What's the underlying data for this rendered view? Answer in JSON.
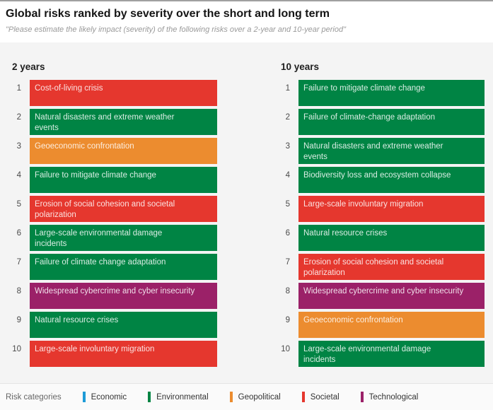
{
  "header": {
    "title": "Global risks ranked by severity over the short and long term",
    "subtitle": "\"Please estimate the likely impact (severity) of the following risks over a 2-year and 10-year period\""
  },
  "chart_data": {
    "type": "table",
    "title": "Global risks ranked by severity over the short and long term",
    "legend_position": "bottom",
    "categories": {
      "Economic": "#1d9bd7",
      "Environmental": "#008444",
      "Geopolitical": "#ec8c2f",
      "Societal": "#e5372e",
      "Technological": "#9b2168"
    },
    "columns": [
      {
        "label": "2 years",
        "items": [
          {
            "rank": "1",
            "risk": "Cost-of-living crisis",
            "category": "Societal"
          },
          {
            "rank": "2",
            "risk": "Natural disasters and extreme weather\nevents",
            "category": "Environmental"
          },
          {
            "rank": "3",
            "risk": "Geoeconomic confrontation",
            "category": "Geopolitical"
          },
          {
            "rank": "4",
            "risk": "Failure to mitigate climate change",
            "category": "Environmental"
          },
          {
            "rank": "5",
            "risk": "Erosion of social cohesion and societal\npolarization",
            "category": "Societal"
          },
          {
            "rank": "6",
            "risk": "Large-scale environmental damage\nincidents",
            "category": "Environmental"
          },
          {
            "rank": "7",
            "risk": "Failure of climate change adaptation",
            "category": "Environmental"
          },
          {
            "rank": "8",
            "risk": "Widespread cybercrime and cyber insecurity",
            "category": "Technological"
          },
          {
            "rank": "9",
            "risk": "Natural resource crises",
            "category": "Environmental"
          },
          {
            "rank": "10",
            "risk": "Large-scale involuntary migration",
            "category": "Societal"
          }
        ]
      },
      {
        "label": "10 years",
        "items": [
          {
            "rank": "1",
            "risk": "Failure to mitigate climate change",
            "category": "Environmental"
          },
          {
            "rank": "2",
            "risk": "Failure of climate-change adaptation",
            "category": "Environmental"
          },
          {
            "rank": "3",
            "risk": "Natural disasters and extreme weather\nevents",
            "category": "Environmental"
          },
          {
            "rank": "4",
            "risk": "Biodiversity loss and ecosystem collapse",
            "category": "Environmental"
          },
          {
            "rank": "5",
            "risk": "Large-scale involuntary migration",
            "category": "Societal"
          },
          {
            "rank": "6",
            "risk": "Natural resource crises",
            "category": "Environmental"
          },
          {
            "rank": "7",
            "risk": "Erosion of social cohesion and societal\npolarization",
            "category": "Societal"
          },
          {
            "rank": "8",
            "risk": "Widespread cybercrime and cyber insecurity",
            "category": "Technological"
          },
          {
            "rank": "9",
            "risk": "Geoeconomic confrontation",
            "category": "Geopolitical"
          },
          {
            "rank": "10",
            "risk": "Large-scale environmental damage\nincidents",
            "category": "Environmental"
          }
        ]
      }
    ]
  },
  "legend": {
    "title": "Risk categories",
    "items": [
      {
        "label": "Economic",
        "category": "Economic"
      },
      {
        "label": "Environmental",
        "category": "Environmental"
      },
      {
        "label": "Geopolitical",
        "category": "Geopolitical"
      },
      {
        "label": "Societal",
        "category": "Societal"
      },
      {
        "label": "Technological",
        "category": "Technological"
      }
    ]
  }
}
